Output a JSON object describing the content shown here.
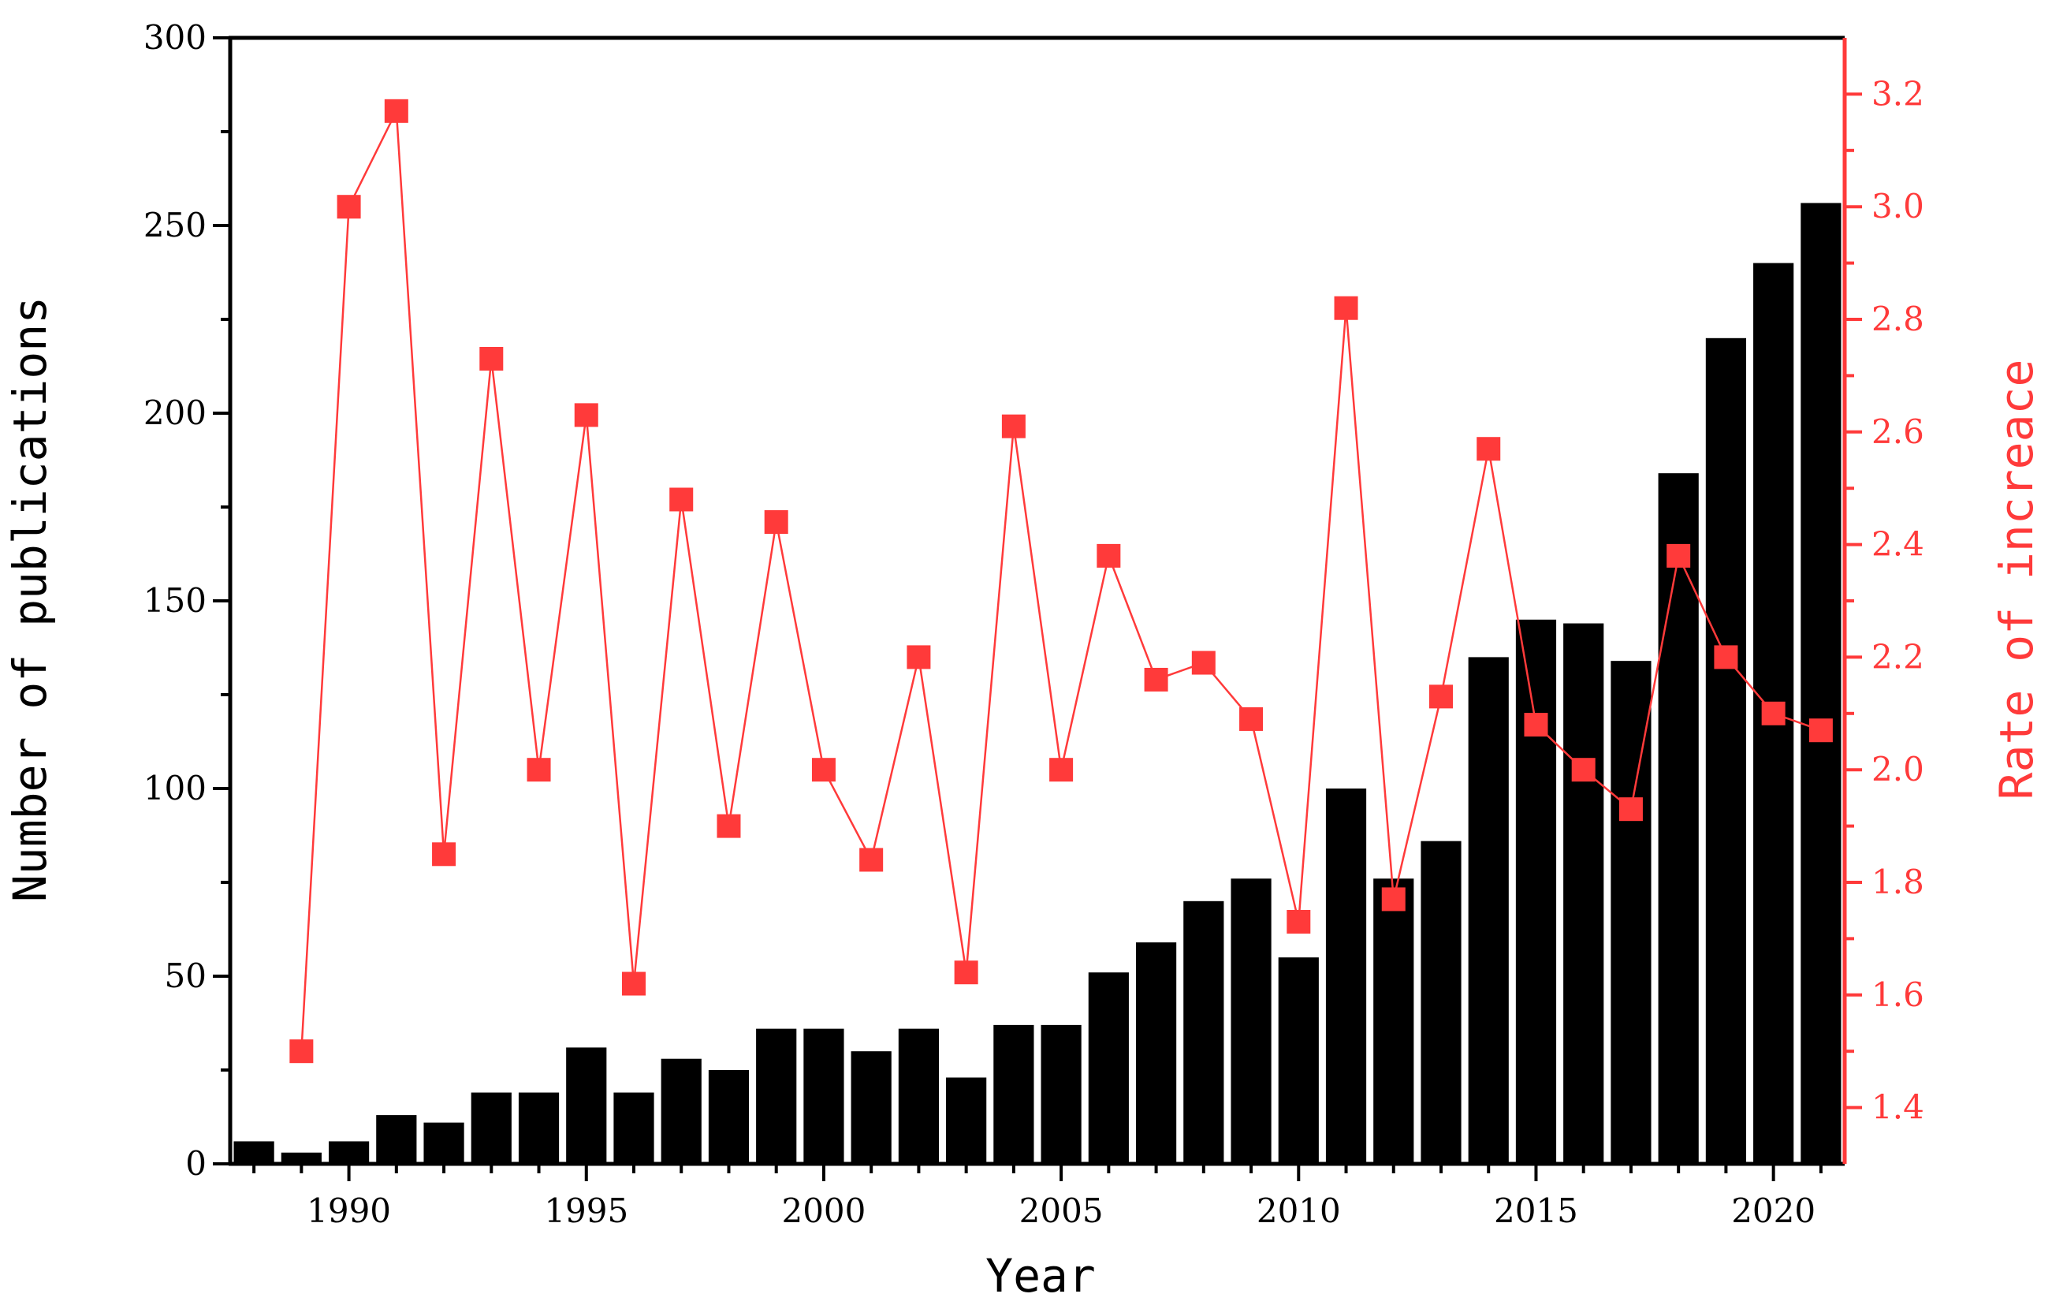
{
  "chart_data": {
    "type": "bar+line",
    "title": "",
    "xlabel": "Year",
    "ylabel_left": "Number of publications",
    "ylabel_right": "Rate of increace",
    "xlim": [
      1988,
      2021
    ],
    "ylim_left": [
      0,
      300
    ],
    "ylim_right": [
      1.3,
      3.3
    ],
    "x_ticks": [
      1990,
      1995,
      2000,
      2005,
      2010,
      2015,
      2020
    ],
    "y_ticks_left": [
      0,
      50,
      100,
      150,
      200,
      250,
      300
    ],
    "y_ticks_right": [
      "1.4",
      "1.6",
      "1.8",
      "2.0",
      "2.2",
      "2.4",
      "2.6",
      "2.8",
      "3.0",
      "3.2"
    ],
    "colors": {
      "bars": "#000000",
      "line": "#ff3a3a",
      "right_axis": "#ff3a3a"
    },
    "grid": false,
    "series": [
      {
        "type": "bar",
        "axis": "left",
        "x": [
          1988,
          1989,
          1990,
          1991,
          1992,
          1993,
          1994,
          1995,
          1996,
          1997,
          1998,
          1999,
          2000,
          2001,
          2002,
          2003,
          2004,
          2005,
          2006,
          2007,
          2008,
          2009,
          2010,
          2011,
          2012,
          2013,
          2014,
          2015,
          2016,
          2017,
          2018,
          2019,
          2020,
          2021
        ],
        "values": [
          6,
          3,
          6,
          13,
          11,
          19,
          19,
          31,
          19,
          28,
          25,
          36,
          36,
          30,
          36,
          23,
          37,
          37,
          51,
          59,
          70,
          76,
          55,
          100,
          76,
          86,
          135,
          145,
          144,
          134,
          184,
          220,
          240,
          256
        ]
      },
      {
        "type": "line",
        "axis": "right",
        "x": [
          1989,
          1990,
          1991,
          1992,
          1993,
          1994,
          1995,
          1996,
          1997,
          1998,
          1999,
          2000,
          2001,
          2002,
          2003,
          2004,
          2005,
          2006,
          2007,
          2008,
          2009,
          2010,
          2011,
          2012,
          2013,
          2014,
          2015,
          2016,
          2017,
          2018,
          2019,
          2020,
          2021
        ],
        "values": [
          1.5,
          3.0,
          3.17,
          1.85,
          2.73,
          2.0,
          2.63,
          1.62,
          2.48,
          1.9,
          2.44,
          2.0,
          1.84,
          2.2,
          1.64,
          2.61,
          2.0,
          2.38,
          2.16,
          2.19,
          2.09,
          1.73,
          2.82,
          1.77,
          2.13,
          2.57,
          2.08,
          2.0,
          1.93,
          2.38,
          2.2,
          2.1,
          2.07
        ]
      }
    ]
  }
}
